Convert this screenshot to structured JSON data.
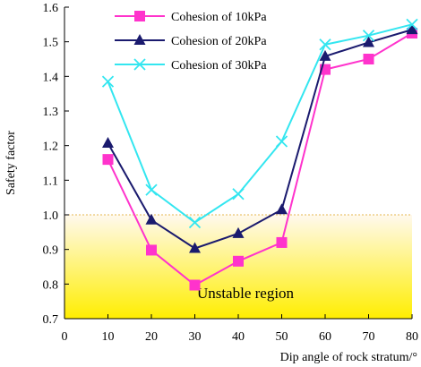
{
  "chart_data": {
    "type": "line",
    "xlabel": "Dip angle of rock stratum/°",
    "ylabel": "Safety factor",
    "xlim": [
      0,
      80
    ],
    "ylim": [
      0.7,
      1.6
    ],
    "x_ticks": [
      "0",
      "10",
      "20",
      "30",
      "40",
      "50",
      "60",
      "70",
      "80"
    ],
    "y_ticks": [
      "0.7",
      "0.8",
      "0.9",
      "1.0",
      "1.1",
      "1.2",
      "1.3",
      "1.4",
      "1.5",
      "1.6"
    ],
    "x": [
      10,
      20,
      30,
      40,
      50,
      60,
      70,
      80
    ],
    "series": [
      {
        "name": "Cohesion of 10kPa",
        "values": [
          1.16,
          0.898,
          0.797,
          0.866,
          0.92,
          1.42,
          1.45,
          1.525
        ],
        "color": "#ff33cc",
        "marker": "square"
      },
      {
        "name": "Cohesion of 20kPa",
        "values": [
          1.207,
          0.985,
          0.903,
          0.946,
          1.015,
          1.458,
          1.498,
          1.535
        ],
        "color": "#1a1a6e",
        "marker": "triangle"
      },
      {
        "name": "Cohesion of 30kPa",
        "values": [
          1.385,
          1.072,
          0.978,
          1.06,
          1.212,
          1.492,
          1.518,
          1.55
        ],
        "color": "#33e6f0",
        "marker": "cross"
      }
    ],
    "region": {
      "label": "Unstable region",
      "y_range": [
        0.7,
        1.0
      ],
      "colors": [
        "#fff9ee",
        "#ffee00"
      ]
    },
    "legend_position": "top-left",
    "grid": false
  }
}
